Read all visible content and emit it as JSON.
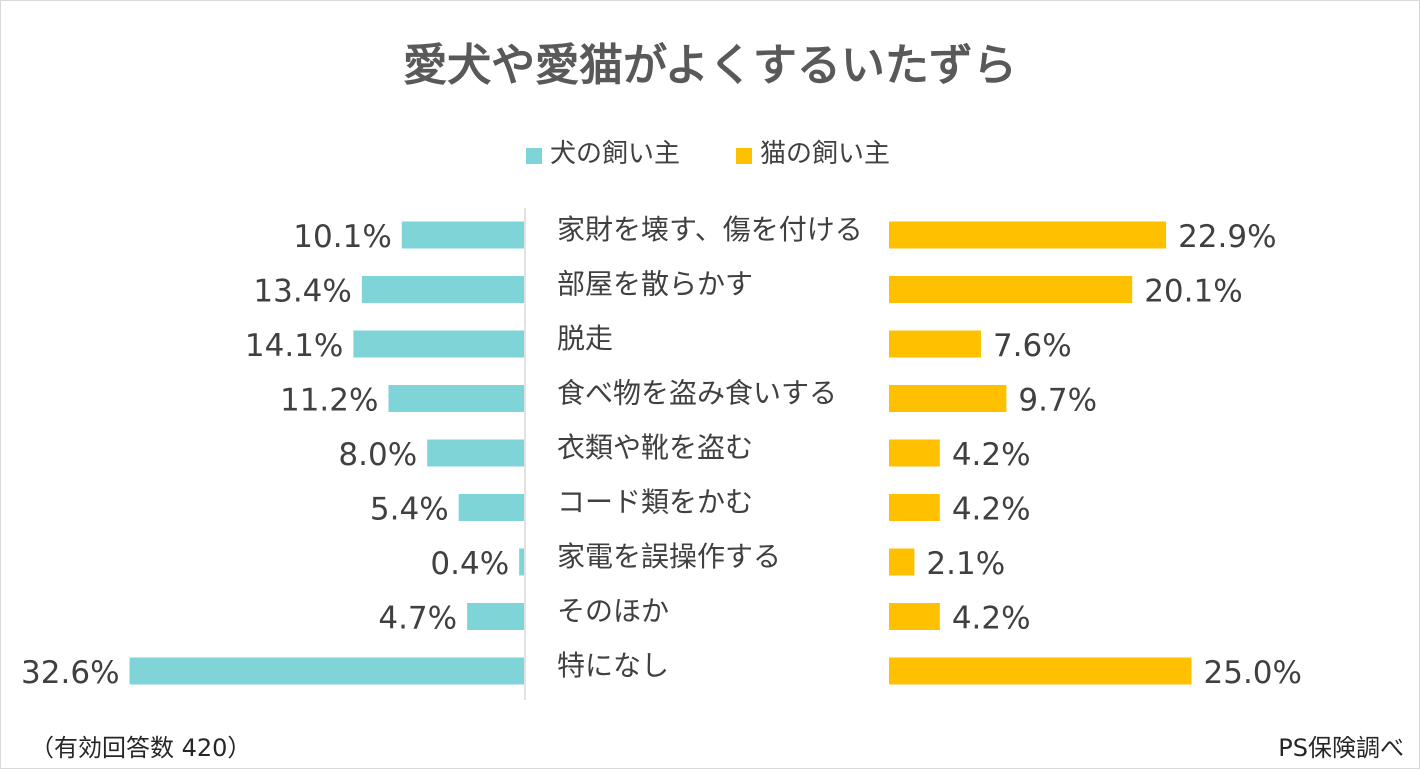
{
  "chart_data": {
    "type": "bar",
    "title": "愛犬や愛猫がよくするいたずら",
    "legend": {
      "position": "top",
      "dog_label": "犬の飼い主",
      "cat_label": "猫の飼い主"
    },
    "categories": [
      "家財を壊す、傷を付ける",
      "部屋を散らかす",
      "脱走",
      "食べ物を盗み食いする",
      "衣類や靴を盗む",
      "コード類をかむ",
      "家電を誤操作する",
      "そのほか",
      "特になし"
    ],
    "series": [
      {
        "name": "犬の飼い主",
        "color": "#7fd4d8",
        "values": [
          10.1,
          13.4,
          14.1,
          11.2,
          8.0,
          5.4,
          0.4,
          4.7,
          32.6
        ],
        "labels": [
          "10.1%",
          "13.4%",
          "14.1%",
          "11.2%",
          "8.0%",
          "5.4%",
          "0.4%",
          "4.7%",
          "32.6%"
        ]
      },
      {
        "name": "猫の飼い主",
        "color": "#ffc000",
        "values": [
          22.9,
          20.1,
          7.6,
          9.7,
          4.2,
          4.2,
          2.1,
          4.2,
          25.0
        ],
        "labels": [
          "22.9%",
          "20.1%",
          "7.6%",
          "9.7%",
          "4.2%",
          "4.2%",
          "2.1%",
          "4.2%",
          "25.0%"
        ]
      }
    ],
    "unit": "%"
  },
  "footnote": "（有効回答数 420）",
  "source": "PS保険調べ"
}
